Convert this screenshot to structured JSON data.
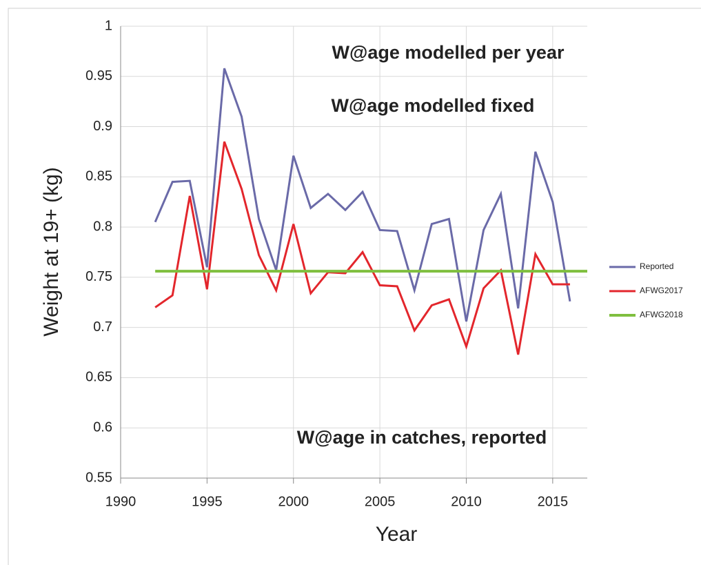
{
  "chart_data": {
    "type": "line",
    "xlabel": "Year",
    "ylabel": "Weight at 19+ (kg)",
    "xlim": [
      1990,
      2017
    ],
    "xticks": [
      1990,
      1995,
      2000,
      2005,
      2010,
      2015
    ],
    "ylim": [
      0.55,
      1
    ],
    "yticks": [
      0.55,
      0.6,
      0.65,
      0.7,
      0.75,
      0.8,
      0.85,
      0.9,
      0.95,
      1
    ],
    "grid": true,
    "legend": "right",
    "series": [
      {
        "name": "Reported",
        "color": "#6a6aa8",
        "x": [
          1992,
          1993,
          1994,
          1995,
          1996,
          1997,
          1998,
          1999,
          2000,
          2001,
          2002,
          2003,
          2004,
          2005,
          2006,
          2007,
          2008,
          2009,
          2010,
          2011,
          2012,
          2013,
          2014,
          2015,
          2016
        ],
        "values": [
          0.805,
          0.845,
          0.846,
          0.76,
          0.958,
          0.91,
          0.808,
          0.757,
          0.871,
          0.819,
          0.833,
          0.817,
          0.835,
          0.797,
          0.796,
          0.737,
          0.803,
          0.808,
          0.706,
          0.797,
          0.833,
          0.719,
          0.875,
          0.825,
          0.726
        ]
      },
      {
        "name": "AFWG2017",
        "color": "#e3262c",
        "x": [
          1992,
          1993,
          1994,
          1995,
          1996,
          1997,
          1998,
          1999,
          2000,
          2001,
          2002,
          2003,
          2004,
          2005,
          2006,
          2007,
          2008,
          2009,
          2010,
          2011,
          2012,
          2013,
          2014,
          2015,
          2016
        ],
        "values": [
          0.72,
          0.732,
          0.831,
          0.738,
          0.885,
          0.838,
          0.772,
          0.737,
          0.803,
          0.734,
          0.755,
          0.754,
          0.775,
          0.742,
          0.741,
          0.697,
          0.722,
          0.728,
          0.681,
          0.739,
          0.757,
          0.673,
          0.773,
          0.743,
          0.743
        ]
      },
      {
        "name": "AFWG2018",
        "color": "#7fbf3f",
        "x": [
          1992,
          2017
        ],
        "values": [
          0.756,
          0.756
        ]
      }
    ],
    "annotations": [
      {
        "text": "W@age modelled per year",
        "color": "#9b3330"
      },
      {
        "text": "W@age modelled fixed",
        "color": "#8fc04f"
      },
      {
        "text": "W@age in catches, reported",
        "color": "#2e4f8a"
      }
    ]
  }
}
